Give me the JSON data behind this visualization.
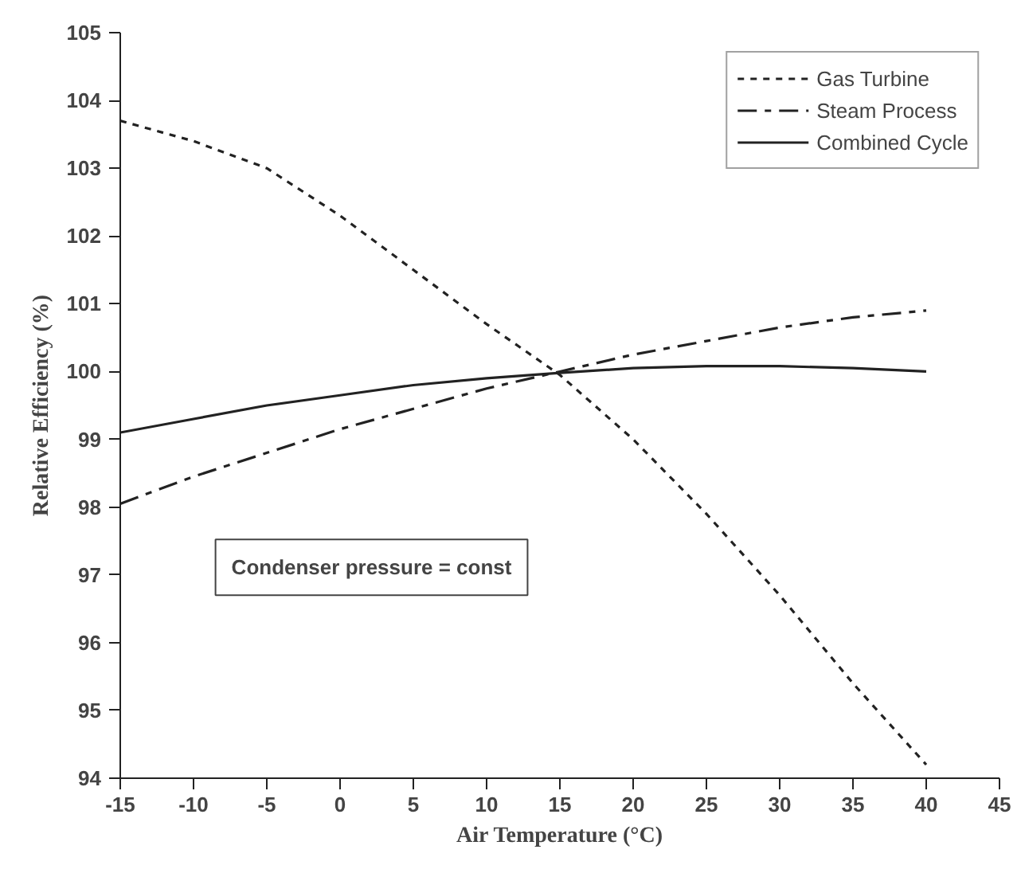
{
  "chart_data": {
    "type": "line",
    "xlabel": "Air Temperature (°C)",
    "ylabel": "Relative Efficiency (%)",
    "x": [
      -15,
      -10,
      -5,
      0,
      5,
      10,
      15,
      20,
      25,
      30,
      35,
      40
    ],
    "series": [
      {
        "name": "Gas Turbine",
        "color": "#222222",
        "line_style": "dotted",
        "values": [
          103.7,
          103.4,
          103.0,
          102.3,
          101.5,
          100.7,
          99.95,
          99.0,
          97.9,
          96.7,
          95.4,
          94.2
        ]
      },
      {
        "name": "Steam Process",
        "color": "#222222",
        "line_style": "dashed",
        "values": [
          98.05,
          98.45,
          98.8,
          99.15,
          99.45,
          99.75,
          100.0,
          100.25,
          100.45,
          100.65,
          100.8,
          100.9
        ]
      },
      {
        "name": "Combined Cycle",
        "color": "#222222",
        "line_style": "solid",
        "values": [
          99.1,
          99.3,
          99.5,
          99.65,
          99.8,
          99.9,
          99.98,
          100.05,
          100.08,
          100.08,
          100.05,
          100.0
        ]
      }
    ],
    "xlim": [
      -15,
      45
    ],
    "xticks": [
      -15,
      -10,
      -5,
      0,
      5,
      10,
      15,
      20,
      25,
      30,
      35,
      40,
      45
    ],
    "ylim": [
      94,
      105
    ],
    "yticks": [
      94,
      95,
      96,
      97,
      98,
      99,
      100,
      101,
      102,
      103,
      104,
      105
    ],
    "annotations": [
      "Condenser pressure = const"
    ],
    "legend": "top right",
    "grid": false,
    "marker": "none"
  }
}
